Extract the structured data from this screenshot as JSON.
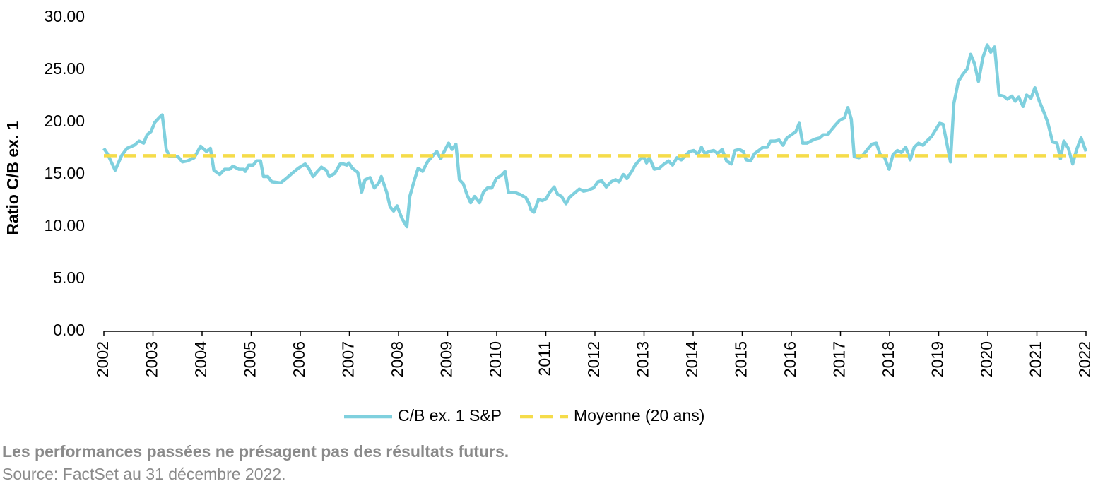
{
  "chart_data": {
    "type": "line",
    "y_label": "Ratio C/B ex. 1",
    "xlim": [
      2002,
      2022
    ],
    "xticks": [
      2002,
      2003,
      2004,
      2005,
      2006,
      2007,
      2008,
      2009,
      2010,
      2011,
      2012,
      2013,
      2014,
      2015,
      2016,
      2017,
      2018,
      2019,
      2020,
      2021,
      2022
    ],
    "ylim": [
      0,
      30
    ],
    "yticks": [
      {
        "value": 0,
        "label": "0.00"
      },
      {
        "value": 5,
        "label": "5.00"
      },
      {
        "value": 10,
        "label": "10.00"
      },
      {
        "value": 15,
        "label": "15.00"
      },
      {
        "value": 20,
        "label": "20.00"
      },
      {
        "value": 25,
        "label": "25.00"
      },
      {
        "value": 30,
        "label": "30.00"
      }
    ],
    "grid": false,
    "legend": "bottom",
    "series": [
      {
        "name": "C/B ex. 1 S&P",
        "color": "#7fd0de",
        "dashed": false,
        "x": [
          2002.0,
          2002.07,
          2002.23,
          2002.36,
          2002.47,
          2002.62,
          2002.72,
          2002.81,
          2002.88,
          2002.96,
          2003.04,
          2003.14,
          2003.19,
          2003.27,
          2003.34,
          2003.51,
          2003.6,
          2003.7,
          2003.84,
          2003.97,
          2004.09,
          2004.17,
          2004.24,
          2004.36,
          2004.46,
          2004.56,
          2004.63,
          2004.75,
          2004.85,
          2004.88,
          2004.95,
          2005.04,
          2005.11,
          2005.19,
          2005.25,
          2005.34,
          2005.42,
          2005.6,
          2005.71,
          2005.83,
          2005.96,
          2006.1,
          2006.17,
          2006.26,
          2006.35,
          2006.43,
          2006.53,
          2006.59,
          2006.7,
          2006.81,
          2006.88,
          2006.95,
          2006.99,
          2007.06,
          2007.17,
          2007.25,
          2007.32,
          2007.42,
          2007.51,
          2007.6,
          2007.65,
          2007.76,
          2007.83,
          2007.9,
          2007.97,
          2008.07,
          2008.17,
          2008.23,
          2008.32,
          2008.4,
          2008.49,
          2008.59,
          2008.7,
          2008.78,
          2008.86,
          2008.92,
          2009.02,
          2009.09,
          2009.17,
          2009.24,
          2009.32,
          2009.4,
          2009.47,
          2009.55,
          2009.65,
          2009.73,
          2009.81,
          2009.9,
          2009.99,
          2010.09,
          2010.17,
          2010.24,
          2010.36,
          2010.47,
          2010.59,
          2010.65,
          2010.7,
          2010.76,
          2010.85,
          2010.93,
          2011.01,
          2011.08,
          2011.17,
          2011.24,
          2011.32,
          2011.41,
          2011.48,
          2011.58,
          2011.68,
          2011.77,
          2011.86,
          2011.97,
          2012.06,
          2012.14,
          2012.23,
          2012.33,
          2012.42,
          2012.49,
          2012.58,
          2012.65,
          2012.75,
          2012.82,
          2012.91,
          2012.99,
          2013.05,
          2013.11,
          2013.21,
          2013.31,
          2013.41,
          2013.5,
          2013.58,
          2013.67,
          2013.76,
          2013.86,
          2013.93,
          2014.01,
          2014.1,
          2014.17,
          2014.24,
          2014.33,
          2014.42,
          2014.5,
          2014.59,
          2014.68,
          2014.78,
          2014.85,
          2014.94,
          2015.02,
          2015.08,
          2015.17,
          2015.25,
          2015.34,
          2015.42,
          2015.51,
          2015.58,
          2015.67,
          2015.75,
          2015.83,
          2015.91,
          2016.0,
          2016.09,
          2016.16,
          2016.23,
          2016.32,
          2016.4,
          2016.49,
          2016.58,
          2016.65,
          2016.73,
          2016.82,
          2016.91,
          2016.99,
          2017.08,
          2017.15,
          2017.22,
          2017.28,
          2017.38,
          2017.47,
          2017.55,
          2017.64,
          2017.73,
          2017.81,
          2017.9,
          2017.99,
          2018.07,
          2018.16,
          2018.24,
          2018.33,
          2018.42,
          2018.5,
          2018.59,
          2018.68,
          2018.76,
          2018.85,
          2018.93,
          2019.02,
          2019.09,
          2019.17,
          2019.24,
          2019.31,
          2019.4,
          2019.48,
          2019.58,
          2019.65,
          2019.73,
          2019.81,
          2019.9,
          2019.99,
          2020.06,
          2020.14,
          2020.23,
          2020.32,
          2020.4,
          2020.49,
          2020.56,
          2020.63,
          2020.72,
          2020.79,
          2020.88,
          2020.96,
          2021.05,
          2021.14,
          2021.22,
          2021.32,
          2021.41,
          2021.48,
          2021.55,
          2021.64,
          2021.73,
          2021.81,
          2021.9,
          2022.0
        ],
        "values": [
          17.5,
          17.0,
          15.4,
          16.8,
          17.5,
          17.8,
          18.2,
          18.0,
          18.8,
          19.1,
          20.0,
          20.5,
          20.7,
          17.4,
          16.7,
          16.7,
          16.2,
          16.3,
          16.6,
          17.7,
          17.2,
          17.5,
          15.4,
          15.0,
          15.5,
          15.5,
          15.8,
          15.5,
          15.5,
          15.3,
          15.9,
          15.9,
          16.3,
          16.3,
          14.8,
          14.8,
          14.3,
          14.2,
          14.6,
          15.1,
          15.6,
          16.0,
          15.6,
          14.8,
          15.3,
          15.7,
          15.4,
          14.8,
          15.1,
          16.0,
          16.0,
          15.9,
          16.1,
          15.6,
          15.2,
          13.3,
          14.5,
          14.7,
          13.7,
          14.2,
          14.8,
          13.3,
          11.9,
          11.5,
          12.0,
          10.8,
          10.0,
          12.9,
          14.4,
          15.6,
          15.3,
          16.2,
          16.8,
          17.2,
          16.5,
          17.1,
          18.0,
          17.4,
          17.9,
          14.5,
          14.1,
          13.0,
          12.3,
          12.9,
          12.3,
          13.3,
          13.7,
          13.7,
          14.6,
          14.9,
          15.3,
          13.3,
          13.3,
          13.1,
          12.8,
          12.3,
          11.6,
          11.4,
          12.6,
          12.5,
          12.7,
          13.3,
          13.8,
          13.1,
          12.9,
          12.2,
          12.8,
          13.2,
          13.6,
          13.4,
          13.5,
          13.7,
          14.3,
          14.4,
          13.8,
          14.3,
          14.5,
          14.3,
          15.0,
          14.6,
          15.3,
          15.9,
          16.4,
          16.7,
          16.1,
          16.6,
          15.5,
          15.6,
          16.0,
          16.3,
          15.9,
          16.6,
          16.4,
          16.9,
          17.2,
          17.3,
          16.9,
          17.6,
          17.0,
          17.2,
          17.3,
          17.0,
          17.4,
          16.3,
          16.0,
          17.3,
          17.4,
          17.2,
          16.4,
          16.3,
          17.0,
          17.3,
          17.6,
          17.6,
          18.2,
          18.2,
          18.3,
          17.8,
          18.5,
          18.8,
          19.1,
          19.9,
          18.0,
          18.0,
          18.2,
          18.4,
          18.5,
          18.8,
          18.8,
          19.3,
          19.8,
          20.2,
          20.4,
          21.4,
          20.3,
          16.7,
          16.6,
          16.9,
          17.4,
          17.9,
          18.0,
          16.9,
          16.6,
          15.5,
          16.9,
          17.3,
          17.1,
          17.6,
          16.4,
          17.6,
          18.0,
          17.8,
          18.2,
          18.6,
          19.2,
          19.9,
          19.8,
          17.9,
          16.2,
          21.8,
          23.9,
          24.5,
          25.1,
          26.5,
          25.6,
          23.9,
          26.2,
          27.4,
          26.7,
          27.2,
          22.6,
          22.5,
          22.2,
          22.5,
          22.0,
          22.4,
          21.5,
          22.6,
          22.3,
          23.3,
          22.0,
          21.0,
          20.0,
          18.1,
          18.0,
          16.5,
          18.2,
          17.5,
          16.0,
          17.4,
          18.5,
          17.2
        ]
      },
      {
        "name": "Moyenne (20 ans)",
        "color": "#f5dc4a",
        "dashed": true,
        "x": [
          2002,
          2022
        ],
        "values": [
          16.8,
          16.8
        ]
      }
    ],
    "note": "Les performances passées ne présagent pas des résultats futurs.",
    "source": "Source: FactSet au 31 décembre 2022."
  }
}
